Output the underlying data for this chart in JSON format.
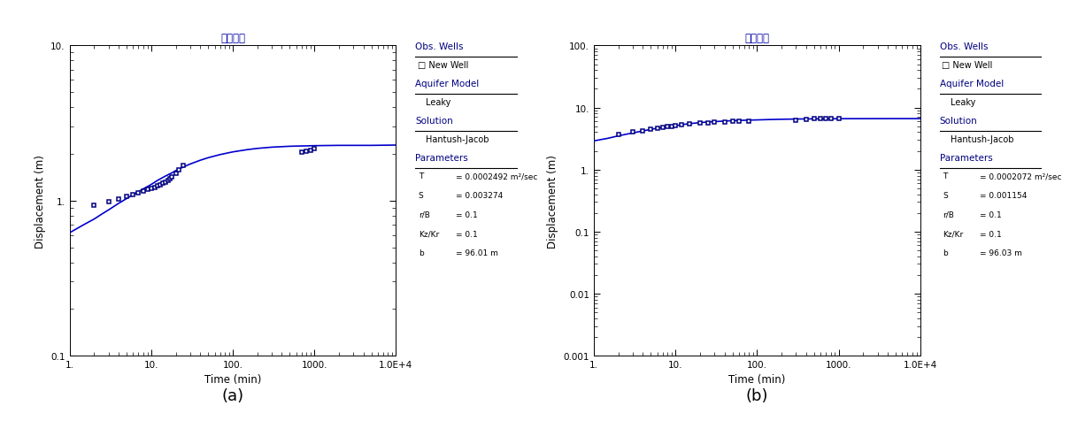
{
  "panel_a": {
    "title": "공공관정",
    "xlabel": "Time (min)",
    "ylabel": "Displacement (m)",
    "xlim": [
      1,
      10000
    ],
    "ylim": [
      0.1,
      10.0
    ],
    "yticks": [
      0.1,
      1.0,
      10.0
    ],
    "yticklabels": [
      "0.1",
      "1.",
      "10."
    ],
    "xticks": [
      1,
      10,
      100,
      1000,
      10000
    ],
    "xticklabels": [
      "1.",
      "10.",
      "100.",
      "1000.",
      "1.0E+4"
    ],
    "curve_color": "#0000cc",
    "marker_color": "#000080",
    "sublabel": "(a)",
    "T_val": "= 0.0002492 m²/sec",
    "S_val": "= 0.003274",
    "rB_val": "= 0.1",
    "KzKr_val": "= 0.1",
    "b_val": "= 96.01 m",
    "curve_time": [
      1,
      1.5,
      2,
      2.5,
      3,
      4,
      5,
      6,
      7,
      8,
      9,
      10,
      12,
      15,
      18,
      20,
      25,
      30,
      40,
      50,
      70,
      100,
      150,
      200,
      300,
      500,
      700,
      1000,
      2000,
      5000,
      10000
    ],
    "curve_disp": [
      0.62,
      0.7,
      0.76,
      0.82,
      0.87,
      0.96,
      1.03,
      1.09,
      1.14,
      1.19,
      1.23,
      1.27,
      1.35,
      1.44,
      1.51,
      1.56,
      1.65,
      1.72,
      1.82,
      1.89,
      1.98,
      2.06,
      2.13,
      2.17,
      2.21,
      2.24,
      2.25,
      2.26,
      2.27,
      2.27,
      2.28
    ],
    "data_time": [
      2,
      3,
      4,
      5,
      6,
      7,
      8,
      9,
      10,
      11,
      12,
      13,
      14,
      15,
      16,
      17,
      18,
      20,
      22,
      25,
      700,
      800,
      900,
      1000
    ],
    "data_disp": [
      0.93,
      0.98,
      1.02,
      1.06,
      1.09,
      1.12,
      1.15,
      1.18,
      1.2,
      1.22,
      1.25,
      1.27,
      1.3,
      1.32,
      1.35,
      1.38,
      1.42,
      1.5,
      1.58,
      1.68,
      2.05,
      2.09,
      2.12,
      2.15
    ]
  },
  "panel_b": {
    "title": "공공관정",
    "xlabel": "Time (min)",
    "ylabel": "Displacement (m)",
    "xlim": [
      1,
      10000
    ],
    "ylim": [
      0.001,
      100.0
    ],
    "yticks": [
      0.001,
      0.01,
      0.1,
      1.0,
      10.0,
      100.0
    ],
    "yticklabels": [
      "0.001",
      "0.01",
      "0.1",
      "1.",
      "10.",
      "100."
    ],
    "xticks": [
      1,
      10,
      100,
      1000,
      10000
    ],
    "xticklabels": [
      "1.",
      "10.",
      "100.",
      "1000.",
      "1.0E+4"
    ],
    "curve_color": "#0000cc",
    "marker_color": "#000080",
    "sublabel": "(b)",
    "T_val": "= 0.0002072 m²/sec",
    "S_val": "= 0.001154",
    "rB_val": "= 0.1",
    "KzKr_val": "= 0.1",
    "b_val": "= 96.03 m",
    "curve_time": [
      1,
      1.5,
      2,
      3,
      4,
      5,
      6,
      7,
      8,
      9,
      10,
      12,
      15,
      20,
      25,
      30,
      40,
      50,
      70,
      100,
      150,
      200,
      300,
      500,
      700,
      1000,
      2000,
      5000,
      10000
    ],
    "curve_disp": [
      2.9,
      3.2,
      3.5,
      3.9,
      4.2,
      4.45,
      4.65,
      4.8,
      4.9,
      5.0,
      5.1,
      5.3,
      5.5,
      5.72,
      5.85,
      5.93,
      6.05,
      6.13,
      6.24,
      6.32,
      6.42,
      6.47,
      6.53,
      6.57,
      6.59,
      6.61,
      6.62,
      6.63,
      6.63
    ],
    "data_time": [
      2,
      3,
      4,
      5,
      6,
      7,
      8,
      9,
      10,
      12,
      15,
      20,
      25,
      30,
      40,
      50,
      60,
      80,
      300,
      400,
      500,
      600,
      700,
      800,
      1000
    ],
    "data_disp": [
      3.65,
      4.0,
      4.25,
      4.5,
      4.65,
      4.8,
      4.9,
      5.0,
      5.1,
      5.28,
      5.45,
      5.62,
      5.72,
      5.8,
      5.9,
      5.96,
      6.0,
      6.05,
      6.28,
      6.43,
      6.55,
      6.58,
      6.62,
      6.65,
      6.65
    ]
  },
  "bg_color": "#ffffff",
  "text_color": "#000000",
  "title_color": "#0000aa",
  "obs_label": "Obs. Wells",
  "well_label": "New Well",
  "aquifer_model_label": "Aquifer Model",
  "aquifer_type": "Leaky",
  "solution_label": "Solution",
  "solution_type": "Hantush-Jacob",
  "params_label": "Parameters",
  "legend_header_color": "#000080",
  "underline_color": "#000000"
}
